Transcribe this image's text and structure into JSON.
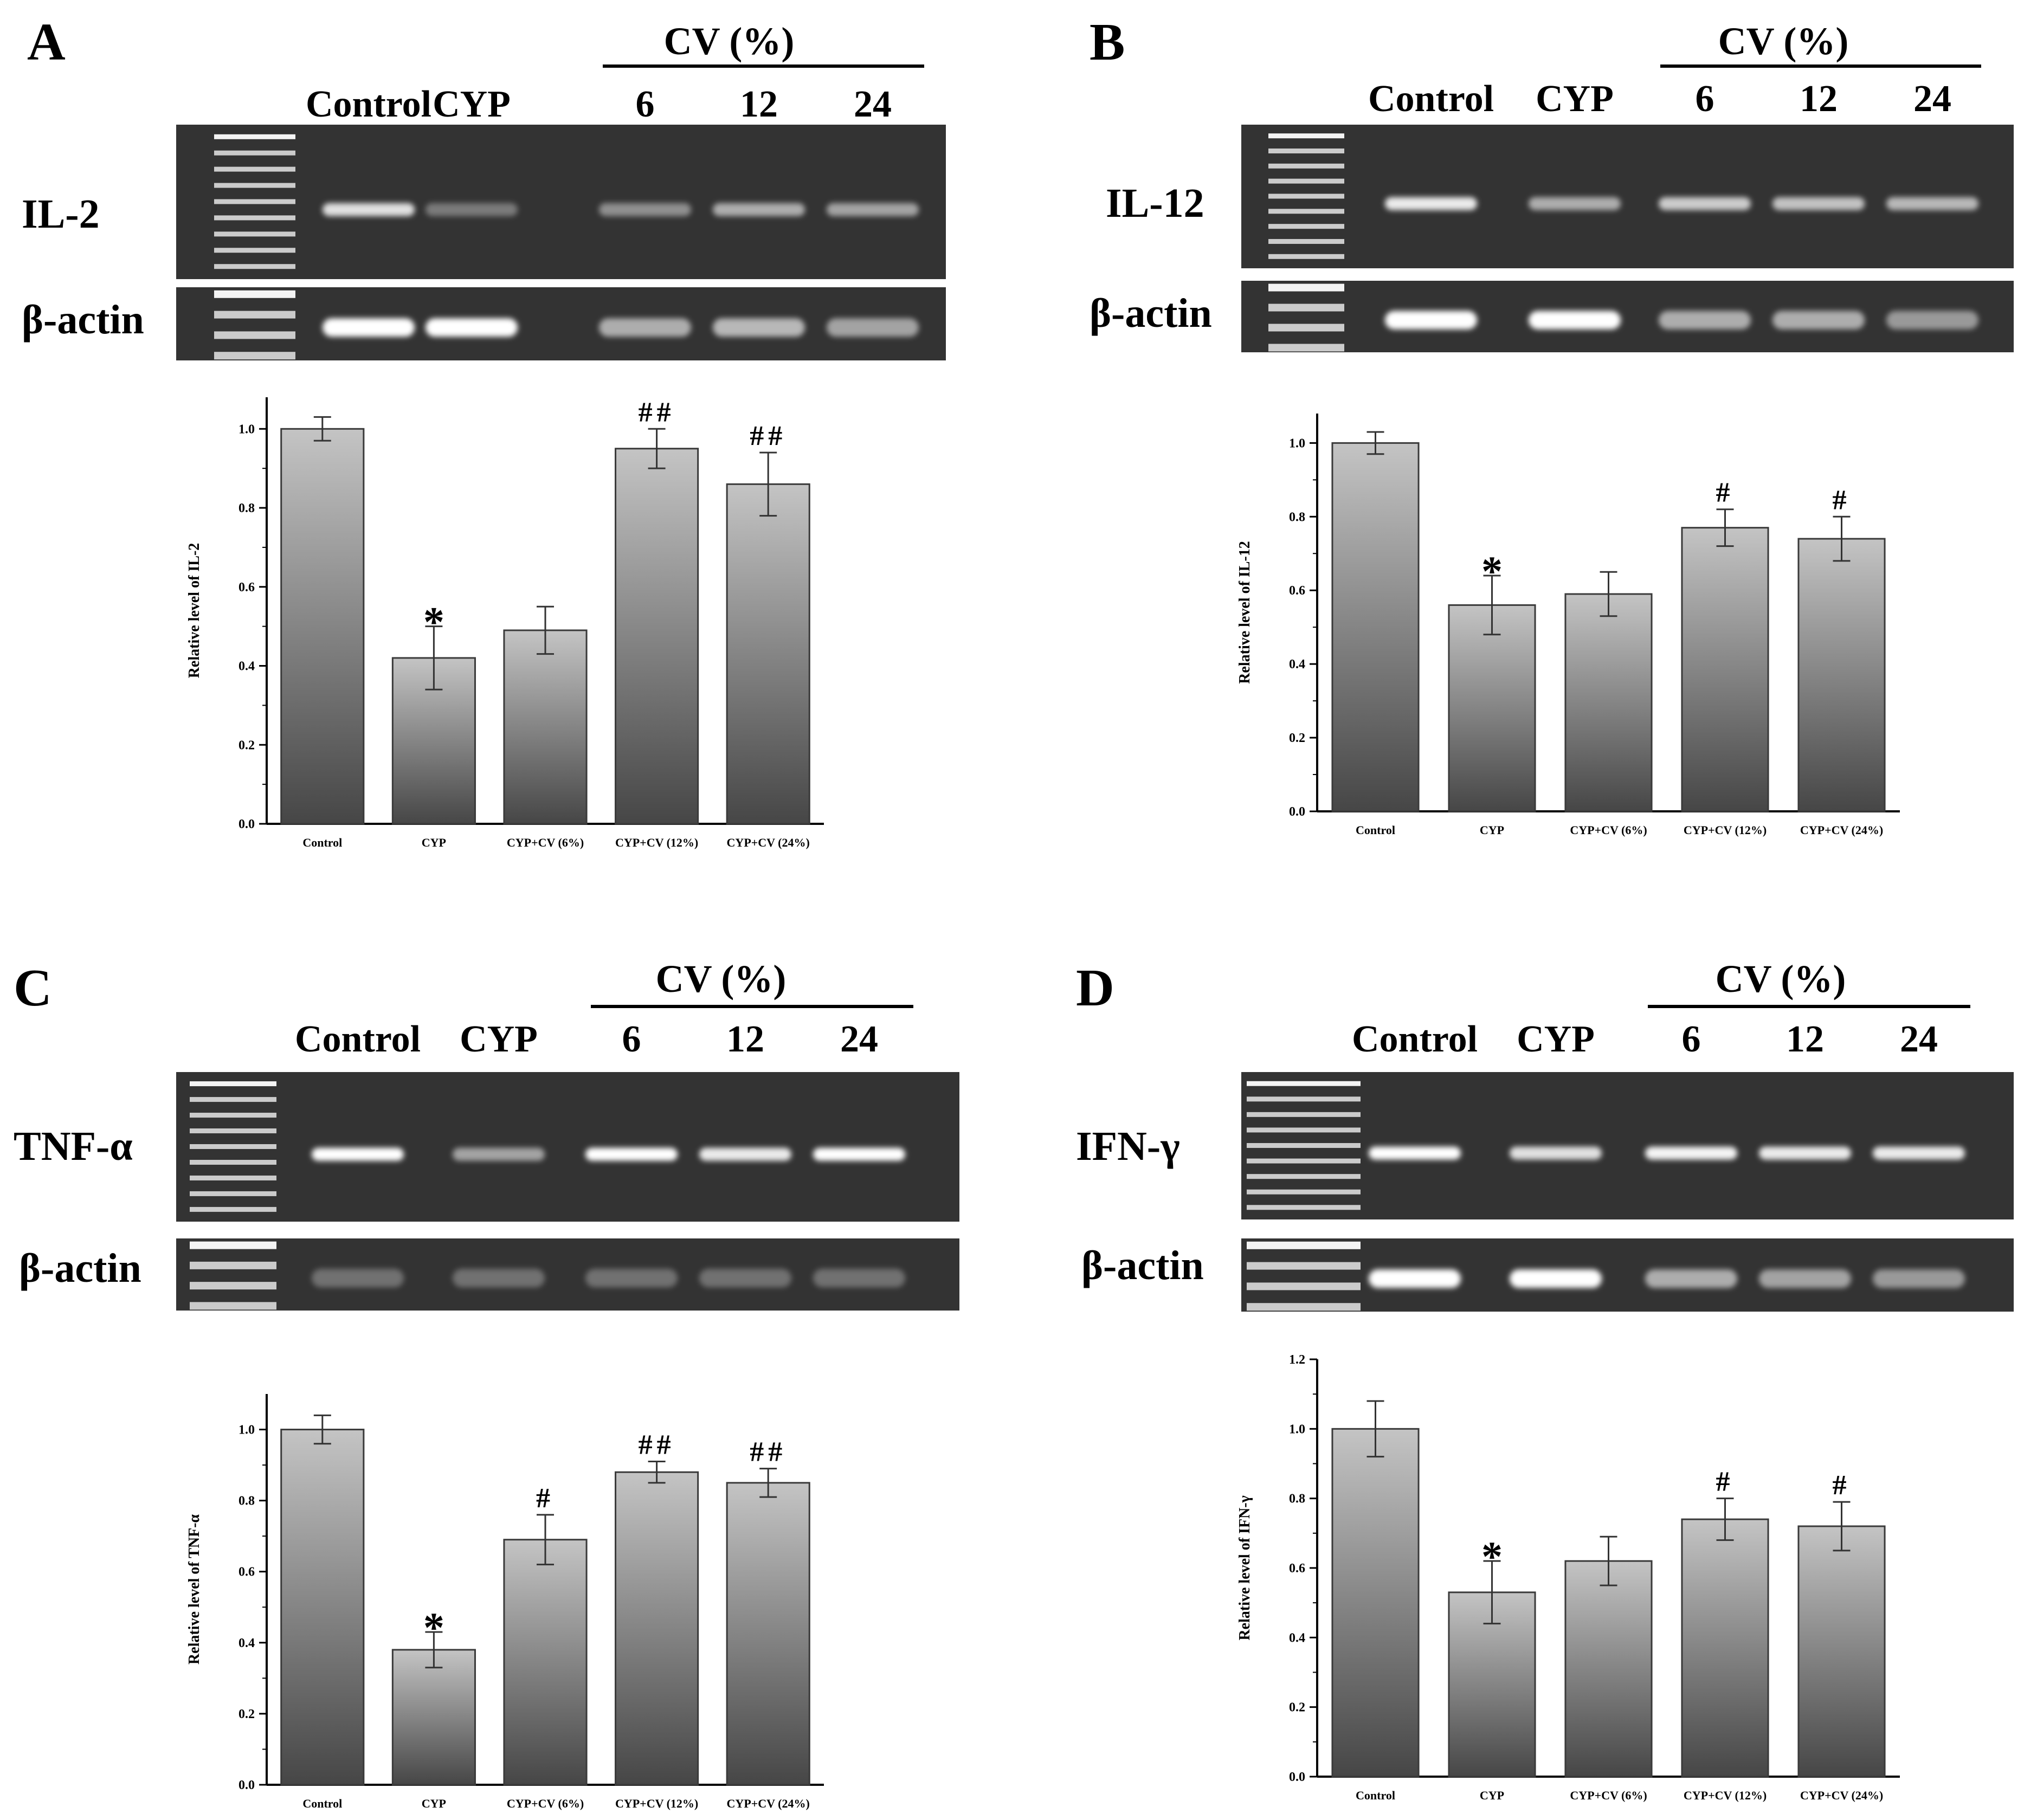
{
  "figure": {
    "bar_gradient": [
      "#c4c4c4",
      "#464646"
    ],
    "gel_background": "#333333",
    "band_color": "#ffffff",
    "panels": [
      {
        "letter": "A",
        "group_label": "CV  (%)",
        "lane_labels": [
          "Control",
          "CYP",
          "6",
          "12",
          "24"
        ],
        "gene_label": "IL-2",
        "actin_label": "β-actin",
        "band_intensity": [
          0.85,
          0.35,
          0.45,
          0.6,
          0.55
        ],
        "actin_intensity": [
          1.0,
          1.0,
          0.6,
          0.65,
          0.55
        ]
      },
      {
        "letter": "B",
        "group_label": "CV  (%)",
        "lane_labels": [
          "Control",
          "CYP",
          "6",
          "12",
          "24"
        ],
        "gene_label": "IL-12",
        "actin_label": "β-actin",
        "band_intensity": [
          0.9,
          0.6,
          0.75,
          0.7,
          0.65
        ],
        "actin_intensity": [
          1.0,
          1.0,
          0.6,
          0.6,
          0.5
        ]
      },
      {
        "letter": "C",
        "group_label": "CV  (%)",
        "lane_labels": [
          "Control",
          "CYP",
          "6",
          "12",
          "24"
        ],
        "gene_label": "TNF-α",
        "actin_label": "β-actin",
        "band_intensity": [
          1.0,
          0.55,
          1.0,
          0.9,
          1.0
        ],
        "actin_intensity": [
          0.3,
          0.3,
          0.3,
          0.3,
          0.3
        ]
      },
      {
        "letter": "D",
        "group_label": "CV  (%)",
        "lane_labels": [
          "Control",
          "CYP",
          "6",
          "12",
          "24"
        ],
        "gene_label": "IFN-γ",
        "actin_label": "β-actin",
        "band_intensity": [
          1.0,
          0.85,
          0.95,
          0.9,
          0.9
        ],
        "actin_intensity": [
          1.0,
          1.0,
          0.6,
          0.55,
          0.5
        ]
      }
    ]
  },
  "chart_data": [
    {
      "panel": "A",
      "type": "bar",
      "title": "",
      "xlabel": "",
      "ylabel": "Relative level of IL-2",
      "categories": [
        "Control",
        "CYP",
        "CYP+CV (6%)",
        "CYP+CV (12%)",
        "CYP+CV (24%)"
      ],
      "values": [
        1.0,
        0.42,
        0.49,
        0.95,
        0.86
      ],
      "errors": [
        0.03,
        0.08,
        0.06,
        0.05,
        0.08
      ],
      "annotations": [
        "",
        "*",
        "",
        "##",
        "##"
      ],
      "ylim": [
        0,
        1.08
      ],
      "yticks": [
        0.0,
        0.2,
        0.4,
        0.6,
        0.8,
        1.0
      ],
      "ytick_labels": [
        "0.0",
        "0.2",
        "0.4",
        "0.6",
        "0.8",
        "1.0"
      ],
      "grid": false
    },
    {
      "panel": "B",
      "type": "bar",
      "title": "",
      "xlabel": "",
      "ylabel": "Relative level of IL-12",
      "categories": [
        "Control",
        "CYP",
        "CYP+CV (6%)",
        "CYP+CV (12%)",
        "CYP+CV (24%)"
      ],
      "values": [
        1.0,
        0.56,
        0.59,
        0.77,
        0.74
      ],
      "errors": [
        0.03,
        0.08,
        0.06,
        0.05,
        0.06
      ],
      "annotations": [
        "",
        "*",
        "",
        "#",
        "#"
      ],
      "ylim": [
        0,
        1.08
      ],
      "yticks": [
        0.0,
        0.2,
        0.4,
        0.6,
        0.8,
        1.0
      ],
      "ytick_labels": [
        "0.0",
        "0.2",
        "0.4",
        "0.6",
        "0.8",
        "1.0"
      ],
      "grid": false
    },
    {
      "panel": "C",
      "type": "bar",
      "title": "",
      "xlabel": "",
      "ylabel": "Relative level of TNF-α",
      "categories": [
        "Control",
        "CYP",
        "CYP+CV (6%)",
        "CYP+CV (12%)",
        "CYP+CV (24%)"
      ],
      "values": [
        1.0,
        0.38,
        0.69,
        0.88,
        0.85
      ],
      "errors": [
        0.04,
        0.05,
        0.07,
        0.03,
        0.04
      ],
      "annotations": [
        "",
        "*",
        "#",
        "##",
        "##"
      ],
      "ylim": [
        0,
        1.1
      ],
      "yticks": [
        0.0,
        0.2,
        0.4,
        0.6,
        0.8,
        1.0
      ],
      "ytick_labels": [
        "0.0",
        "0.2",
        "0.4",
        "0.6",
        "0.8",
        "1.0"
      ],
      "grid": false
    },
    {
      "panel": "D",
      "type": "bar",
      "title": "",
      "xlabel": "",
      "ylabel": "Relative level of IFN-γ",
      "categories": [
        "Control",
        "CYP",
        "CYP+CV (6%)",
        "CYP+CV (12%)",
        "CYP+CV (24%)"
      ],
      "values": [
        1.0,
        0.53,
        0.62,
        0.74,
        0.72
      ],
      "errors": [
        0.08,
        0.09,
        0.07,
        0.06,
        0.07
      ],
      "annotations": [
        "",
        "*",
        "",
        "#",
        "#"
      ],
      "ylim": [
        0,
        1.2
      ],
      "yticks": [
        0.0,
        0.2,
        0.4,
        0.6,
        0.8,
        1.0,
        1.2
      ],
      "ytick_labels": [
        "0.0",
        "0.2",
        "0.4",
        "0.6",
        "0.8",
        "1.0",
        "1.2"
      ],
      "grid": false
    }
  ]
}
